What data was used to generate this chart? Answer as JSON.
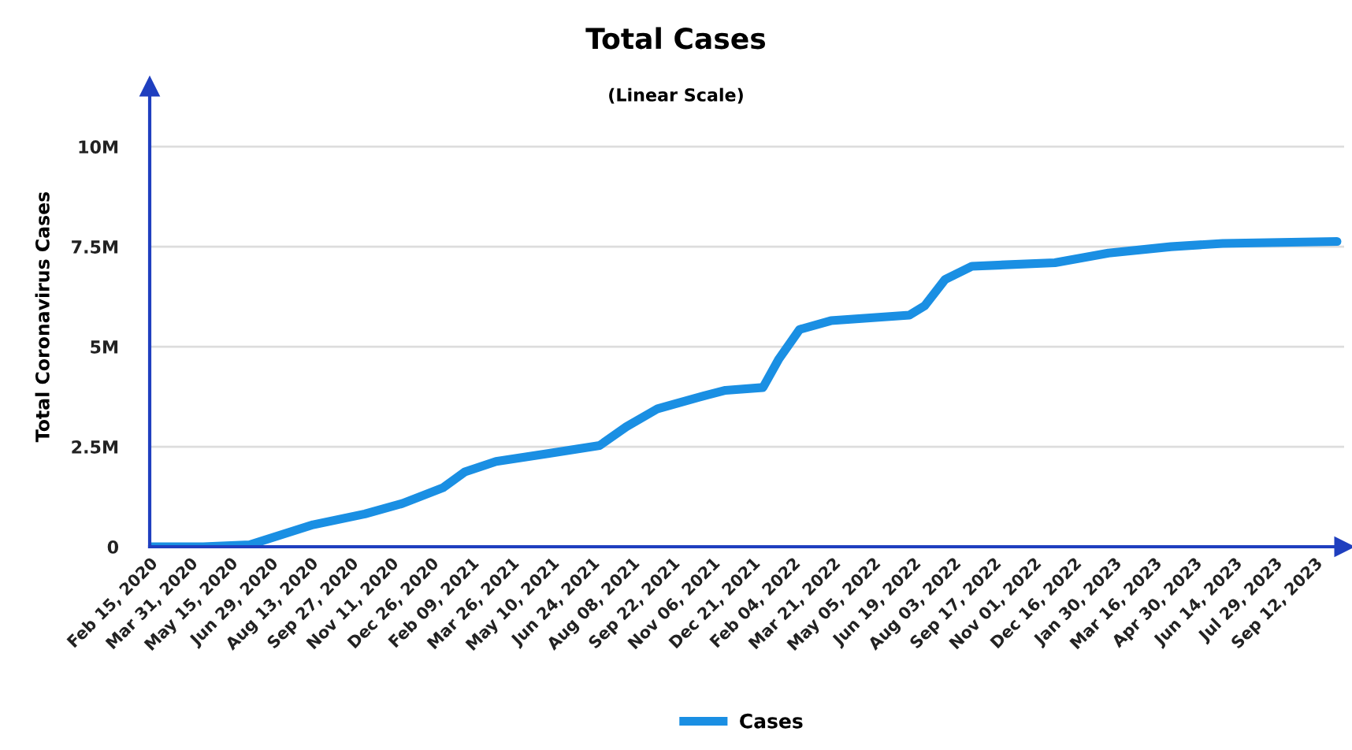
{
  "chart_data": {
    "type": "line",
    "title": "Total Cases",
    "subtitle": "(Linear Scale)",
    "ylabel": "Total Coronavirus Cases",
    "x": [
      "2020-02-15",
      "2020-02-22",
      "2020-04-15",
      "2020-06-06",
      "2020-08-16",
      "2020-10-13",
      "2020-11-24",
      "2021-01-09",
      "2021-02-02",
      "2021-03-09",
      "2021-05-06",
      "2021-07-03",
      "2021-08-02",
      "2021-09-06",
      "2021-10-29",
      "2021-11-21",
      "2022-01-02",
      "2022-01-20",
      "2022-02-12",
      "2022-03-19",
      "2022-06-15",
      "2022-07-02",
      "2022-07-25",
      "2022-08-24",
      "2022-11-25",
      "2023-01-24",
      "2023-04-04",
      "2023-06-01",
      "2023-10-07"
    ],
    "series": [
      {
        "name": "Cases",
        "color": "#1a8fe3",
        "values": [
          0,
          0,
          0,
          50000,
          550000,
          820000,
          1080000,
          1480000,
          1870000,
          2130000,
          2330000,
          2530000,
          3000000,
          3450000,
          3780000,
          3910000,
          3980000,
          4700000,
          5430000,
          5650000,
          5790000,
          6020000,
          6680000,
          7010000,
          7100000,
          7340000,
          7500000,
          7580000,
          7630000
        ]
      }
    ],
    "xlim": [
      "2020-02-15",
      "2023-10-15"
    ],
    "xticks": [
      {
        "value": "2020-02-15",
        "label": "Feb 15, 2020"
      },
      {
        "value": "2020-03-31",
        "label": "Mar 31, 2020"
      },
      {
        "value": "2020-05-15",
        "label": "May 15, 2020"
      },
      {
        "value": "2020-06-29",
        "label": "Jun 29, 2020"
      },
      {
        "value": "2020-08-13",
        "label": "Aug 13, 2020"
      },
      {
        "value": "2020-09-27",
        "label": "Sep 27, 2020"
      },
      {
        "value": "2020-11-11",
        "label": "Nov 11, 2020"
      },
      {
        "value": "2020-12-26",
        "label": "Dec 26, 2020"
      },
      {
        "value": "2021-02-09",
        "label": "Feb 09, 2021"
      },
      {
        "value": "2021-03-26",
        "label": "Mar 26, 2021"
      },
      {
        "value": "2021-05-10",
        "label": "May 10, 2021"
      },
      {
        "value": "2021-06-24",
        "label": "Jun 24, 2021"
      },
      {
        "value": "2021-08-08",
        "label": "Aug 08, 2021"
      },
      {
        "value": "2021-09-22",
        "label": "Sep 22, 2021"
      },
      {
        "value": "2021-11-06",
        "label": "Nov 06, 2021"
      },
      {
        "value": "2021-12-21",
        "label": "Dec 21, 2021"
      },
      {
        "value": "2022-02-04",
        "label": "Feb 04, 2022"
      },
      {
        "value": "2022-03-21",
        "label": "Mar 21, 2022"
      },
      {
        "value": "2022-05-05",
        "label": "May 05, 2022"
      },
      {
        "value": "2022-06-19",
        "label": "Jun 19, 2022"
      },
      {
        "value": "2022-08-03",
        "label": "Aug 03, 2022"
      },
      {
        "value": "2022-09-17",
        "label": "Sep 17, 2022"
      },
      {
        "value": "2022-11-01",
        "label": "Nov 01, 2022"
      },
      {
        "value": "2022-12-16",
        "label": "Dec 16, 2022"
      },
      {
        "value": "2023-01-30",
        "label": "Jan 30, 2023"
      },
      {
        "value": "2023-03-16",
        "label": "Mar 16, 2023"
      },
      {
        "value": "2023-04-30",
        "label": "Apr 30, 2023"
      },
      {
        "value": "2023-06-14",
        "label": "Jun 14, 2023"
      },
      {
        "value": "2023-07-29",
        "label": "Jul 29, 2023"
      },
      {
        "value": "2023-09-12",
        "label": "Sep 12, 2023"
      }
    ],
    "ylim": [
      0,
      11500000
    ],
    "yticks": [
      0,
      {
        "value": 2500000,
        "label": "2.5M"
      },
      {
        "value": 5000000,
        "label": "5M"
      },
      {
        "value": 7500000,
        "label": "7.5M"
      },
      {
        "value": 10000000,
        "label": "10M"
      }
    ],
    "grid": "y",
    "legend": "bottom",
    "line_style": "solid"
  }
}
